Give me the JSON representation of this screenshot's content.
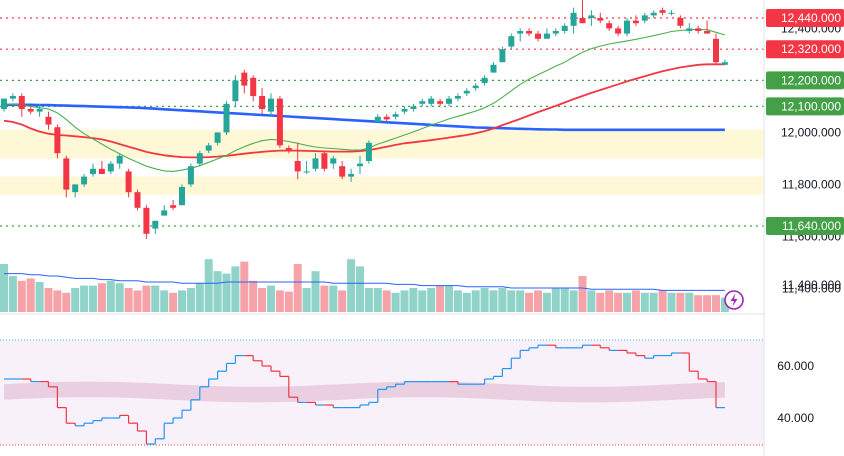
{
  "chart_data": [
    {
      "type": "candlestick",
      "ylim": [
        11540,
        12520
      ],
      "y_ticks": [
        {
          "value": 12400,
          "label": "12,400.000"
        },
        {
          "value": 12000,
          "label": "12,000.000"
        },
        {
          "value": 11800,
          "label": "11,800.000"
        },
        {
          "value": 11600,
          "label": "11,600.000"
        },
        {
          "value": 11400,
          "label": "11,400.000"
        }
      ],
      "level_lines": [
        {
          "value": 12440,
          "label": "12,440.000",
          "color": "#f23645"
        },
        {
          "value": 12320,
          "label": "12,320.000",
          "color": "#f23645"
        },
        {
          "value": 12200,
          "label": "12,200.000",
          "color": "#43a047"
        },
        {
          "value": 12100,
          "label": "12,100.000",
          "color": "#43a047"
        },
        {
          "value": 11640,
          "label": "11,640.000",
          "color": "#43a047"
        }
      ],
      "zones": [
        {
          "from": 11900,
          "to": 12010
        },
        {
          "from": 11760,
          "to": 11830
        }
      ],
      "colors": {
        "up": "#26a69a",
        "down": "#f23645",
        "ma_fast": "#4caf50",
        "ma_slow": "#f23645",
        "ma_long": "#2962ff",
        "level_dots": "#43a047"
      },
      "candles": [
        [
          12090,
          12130,
          12080,
          12130
        ],
        [
          12130,
          12150,
          12120,
          12140
        ],
        [
          12140,
          12150,
          12060,
          12090
        ],
        [
          12090,
          12100,
          12070,
          12080
        ],
        [
          12080,
          12110,
          12060,
          12090
        ],
        [
          12060,
          12080,
          12010,
          12030
        ],
        [
          12020,
          12030,
          11900,
          11920
        ],
        [
          11900,
          11910,
          11750,
          11780
        ],
        [
          11770,
          11800,
          11750,
          11800
        ],
        [
          11800,
          11840,
          11790,
          11830
        ],
        [
          11840,
          11880,
          11830,
          11860
        ],
        [
          11860,
          11890,
          11840,
          11840
        ],
        [
          11850,
          11890,
          11840,
          11880
        ],
        [
          11880,
          11920,
          11860,
          11910
        ],
        [
          11850,
          11860,
          11750,
          11770
        ],
        [
          11770,
          11780,
          11700,
          11710
        ],
        [
          11710,
          11720,
          11590,
          11610
        ],
        [
          11630,
          11660,
          11610,
          11660
        ],
        [
          11680,
          11720,
          11680,
          11700
        ],
        [
          11720,
          11740,
          11700,
          11710
        ],
        [
          11720,
          11800,
          11720,
          11790
        ],
        [
          11800,
          11880,
          11790,
          11870
        ],
        [
          11880,
          11930,
          11870,
          11920
        ],
        [
          11930,
          11960,
          11920,
          11950
        ],
        [
          11960,
          12000,
          11950,
          12000
        ],
        [
          12000,
          12120,
          11990,
          12110
        ],
        [
          12120,
          12220,
          12100,
          12200
        ],
        [
          12230,
          12240,
          12150,
          12180
        ],
        [
          12210,
          12220,
          12120,
          12140
        ],
        [
          12140,
          12170,
          12070,
          12090
        ],
        [
          12080,
          12150,
          12060,
          12130
        ],
        [
          12130,
          12140,
          11940,
          11950
        ],
        [
          11940,
          11950,
          11920,
          11930
        ],
        [
          11890,
          11960,
          11820,
          11850
        ],
        [
          11850,
          11890,
          11840,
          11850
        ],
        [
          11860,
          11920,
          11850,
          11900
        ],
        [
          11920,
          11930,
          11850,
          11860
        ],
        [
          11880,
          11910,
          11860,
          11900
        ],
        [
          11870,
          11890,
          11820,
          11830
        ],
        [
          11830,
          11860,
          11810,
          11840
        ],
        [
          11870,
          11910,
          11840,
          11880
        ],
        [
          11890,
          11970,
          11880,
          11960
        ],
        [
          12040,
          12070,
          12040,
          12060
        ],
        [
          12060,
          12070,
          12040,
          12050
        ],
        [
          12060,
          12080,
          12050,
          12070
        ],
        [
          12080,
          12100,
          12070,
          12090
        ],
        [
          12090,
          12110,
          12080,
          12100
        ],
        [
          12110,
          12130,
          12100,
          12120
        ],
        [
          12110,
          12140,
          12100,
          12130
        ],
        [
          12120,
          12130,
          12100,
          12110
        ],
        [
          12110,
          12140,
          12100,
          12130
        ],
        [
          12130,
          12150,
          12120,
          12140
        ],
        [
          12150,
          12170,
          12140,
          12160
        ],
        [
          12170,
          12190,
          12160,
          12180
        ],
        [
          12190,
          12220,
          12180,
          12210
        ],
        [
          12230,
          12270,
          12230,
          12260
        ],
        [
          12270,
          12330,
          12270,
          12320
        ],
        [
          12330,
          12380,
          12320,
          12370
        ],
        [
          12380,
          12400,
          12350,
          12390
        ],
        [
          12390,
          12400,
          12370,
          12380
        ],
        [
          12380,
          12390,
          12350,
          12360
        ],
        [
          12360,
          12400,
          12360,
          12380
        ],
        [
          12380,
          12400,
          12370,
          12390
        ],
        [
          12390,
          12420,
          12380,
          12410
        ],
        [
          12410,
          12480,
          12380,
          12460
        ],
        [
          12440,
          12510,
          12420,
          12420
        ],
        [
          12440,
          12470,
          12410,
          12450
        ],
        [
          12440,
          12460,
          12420,
          12430
        ],
        [
          12420,
          12430,
          12390,
          12400
        ],
        [
          12400,
          12410,
          12370,
          12380
        ],
        [
          12380,
          12440,
          12370,
          12430
        ],
        [
          12430,
          12450,
          12410,
          12420
        ],
        [
          12430,
          12460,
          12420,
          12450
        ],
        [
          12450,
          12470,
          12440,
          12460
        ],
        [
          12470,
          12480,
          12450,
          12460
        ],
        [
          12460,
          12470,
          12450,
          12460
        ],
        [
          12440,
          12450,
          12400,
          12410
        ],
        [
          12390,
          12420,
          12380,
          12400
        ],
        [
          12400,
          12410,
          12380,
          12390
        ],
        [
          12390,
          12430,
          12380,
          12380
        ],
        [
          12360,
          12380,
          12260,
          12270
        ],
        [
          12260,
          12280,
          12260,
          12270
        ]
      ],
      "ma_fast": [
        12110,
        12108,
        12105,
        12100,
        12095,
        12090,
        12075,
        12050,
        12020,
        11995,
        11975,
        11955,
        11935,
        11918,
        11900,
        11885,
        11870,
        11860,
        11852,
        11850,
        11855,
        11862,
        11872,
        11885,
        11898,
        11912,
        11930,
        11945,
        11958,
        11968,
        11973,
        11970,
        11965,
        11958,
        11950,
        11944,
        11940,
        11938,
        11935,
        11932,
        11932,
        11940,
        11955,
        11966,
        11978,
        11990,
        12002,
        12015,
        12028,
        12040,
        12052,
        12062,
        12072,
        12082,
        12095,
        12112,
        12135,
        12160,
        12185,
        12205,
        12222,
        12238,
        12255,
        12270,
        12290,
        12308,
        12322,
        12332,
        12340,
        12346,
        12352,
        12358,
        12365,
        12372,
        12380,
        12388,
        12392,
        12395,
        12396,
        12395,
        12385,
        12375
      ],
      "ma_slow": [
        12045,
        12040,
        12030,
        12015,
        12003,
        11995,
        11990,
        11988,
        11985,
        11982,
        11978,
        11973,
        11965,
        11955,
        11945,
        11935,
        11925,
        11918,
        11912,
        11908,
        11905,
        11904,
        11904,
        11905,
        11907,
        11910,
        11914,
        11918,
        11922,
        11925,
        11928,
        11930,
        11930,
        11930,
        11929,
        11928,
        11927,
        11926,
        11926,
        11926,
        11928,
        11932,
        11938,
        11945,
        11952,
        11958,
        11962,
        11966,
        11970,
        11975,
        11980,
        11985,
        11990,
        11997,
        12005,
        12015,
        12028,
        12040,
        12052,
        12065,
        12078,
        12090,
        12102,
        12115,
        12128,
        12140,
        12152,
        12163,
        12174,
        12185,
        12196,
        12206,
        12216,
        12226,
        12235,
        12243,
        12250,
        12255,
        12260,
        12262,
        12262,
        12262
      ],
      "ma_long": [
        12106,
        12106,
        12106,
        12106,
        12105,
        12105,
        12104,
        12103,
        12102,
        12101,
        12100,
        12099,
        12098,
        12097,
        12096,
        12095,
        12093,
        12091,
        12089,
        12087,
        12085,
        12083,
        12081,
        12079,
        12077,
        12075,
        12073,
        12071,
        12069,
        12067,
        12065,
        12063,
        12061,
        12059,
        12057,
        12055,
        12053,
        12051,
        12049,
        12047,
        12045,
        12043,
        12041,
        12039,
        12037,
        12035,
        12033,
        12031,
        12029,
        12027,
        12025,
        12023,
        12021,
        12019,
        12018,
        12017,
        12016,
        12015,
        12014,
        12013,
        12012,
        12011,
        12011,
        12010,
        12010,
        12010,
        12010,
        12010,
        12010,
        12010,
        12010,
        12010,
        12010,
        12010,
        12010,
        12010,
        12010,
        12010,
        12010,
        12010,
        12010,
        12010
      ]
    },
    {
      "type": "bar",
      "panel": "volume",
      "y_ticks": [
        {
          "value": 11400,
          "label": "11,400.000"
        }
      ],
      "values": [
        40,
        30,
        26,
        28,
        25,
        20,
        18,
        16,
        20,
        22,
        22,
        24,
        26,
        24,
        20,
        18,
        22,
        22,
        18,
        16,
        18,
        20,
        24,
        44,
        34,
        32,
        38,
        42,
        26,
        20,
        22,
        18,
        17,
        40,
        20,
        34,
        22,
        22,
        18,
        44,
        38,
        20,
        20,
        18,
        16,
        18,
        20,
        18,
        20,
        22,
        22,
        18,
        16,
        18,
        20,
        18,
        20,
        18,
        18,
        16,
        18,
        16,
        20,
        20,
        18,
        30,
        18,
        16,
        18,
        16,
        16,
        18,
        16,
        16,
        18,
        16,
        16,
        16,
        14,
        14,
        14,
        12
      ],
      "ma": [
        32,
        32,
        32,
        31,
        31,
        30,
        30,
        29,
        28,
        28,
        28,
        27,
        27,
        26,
        26,
        26,
        25,
        25,
        25,
        25,
        24,
        24,
        24,
        24,
        24,
        25,
        25,
        25,
        25,
        25,
        25,
        25,
        25,
        25,
        25,
        25,
        25,
        24,
        24,
        24,
        24,
        24,
        24,
        24,
        23,
        23,
        23,
        22,
        22,
        22,
        22,
        22,
        21,
        21,
        21,
        21,
        21,
        20,
        20,
        20,
        20,
        20,
        20,
        20,
        20,
        20,
        19,
        19,
        19,
        19,
        19,
        19,
        19,
        19,
        18,
        18,
        18,
        18,
        18,
        18,
        18,
        18
      ]
    },
    {
      "type": "line",
      "panel": "oscillator",
      "ylim": [
        28,
        74
      ],
      "y_ticks": [
        {
          "value": 60,
          "label": "60.000"
        },
        {
          "value": 40,
          "label": "40.000"
        }
      ],
      "band": {
        "upper": 53,
        "lower": 47
      },
      "values": [
        55,
        55,
        55,
        54,
        54,
        52,
        44,
        38,
        37,
        38,
        39,
        40,
        40,
        41,
        38,
        35,
        30,
        32,
        38,
        40,
        43,
        47,
        52,
        55,
        58,
        61,
        64,
        64,
        62,
        60,
        58,
        56,
        48,
        46,
        46,
        45,
        45,
        44,
        44,
        44,
        45,
        46,
        51,
        52,
        53,
        54,
        54,
        54,
        54,
        54,
        54,
        53,
        53,
        53,
        55,
        56,
        59,
        63,
        66,
        67,
        68,
        68,
        67,
        67,
        67,
        68,
        68,
        67,
        66,
        66,
        65,
        64,
        63,
        64,
        64,
        65,
        65,
        58,
        55,
        54,
        44,
        44
      ]
    }
  ],
  "icons": {
    "alert": "lightning-icon"
  }
}
